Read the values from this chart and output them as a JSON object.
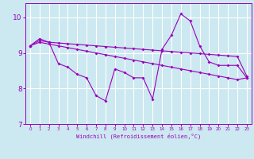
{
  "xlabel": "Windchill (Refroidissement éolien,°C)",
  "x_values": [
    0,
    1,
    2,
    3,
    4,
    5,
    6,
    7,
    8,
    9,
    10,
    11,
    12,
    13,
    14,
    15,
    16,
    17,
    18,
    19,
    20,
    21,
    22,
    23
  ],
  "line1": [
    9.2,
    9.4,
    9.3,
    8.7,
    8.6,
    8.4,
    8.3,
    7.8,
    7.65,
    8.55,
    8.45,
    8.3,
    8.3,
    7.7,
    9.1,
    9.5,
    10.1,
    9.9,
    9.2,
    8.75,
    8.65,
    8.65,
    8.65,
    8.3
  ],
  "line2": [
    9.2,
    9.35,
    9.3,
    9.28,
    9.26,
    9.24,
    9.22,
    9.2,
    9.18,
    9.16,
    9.14,
    9.12,
    9.1,
    9.08,
    9.06,
    9.04,
    9.02,
    9.0,
    8.98,
    8.96,
    8.94,
    8.92,
    8.9,
    8.35
  ],
  "line3": [
    9.2,
    9.3,
    9.25,
    9.2,
    9.15,
    9.1,
    9.05,
    9.0,
    8.95,
    8.9,
    8.85,
    8.8,
    8.75,
    8.7,
    8.65,
    8.6,
    8.55,
    8.5,
    8.45,
    8.4,
    8.35,
    8.3,
    8.25,
    8.3
  ],
  "line_color": "#9900bb",
  "bg_color": "#cce8f0",
  "grid_color": "#ffffff",
  "ylim": [
    7.0,
    10.4
  ],
  "xlim": [
    -0.5,
    23.5
  ],
  "yticks": [
    7,
    8,
    9,
    10
  ],
  "xticks": [
    0,
    1,
    2,
    3,
    4,
    5,
    6,
    7,
    8,
    9,
    10,
    11,
    12,
    13,
    14,
    15,
    16,
    17,
    18,
    19,
    20,
    21,
    22,
    23
  ]
}
